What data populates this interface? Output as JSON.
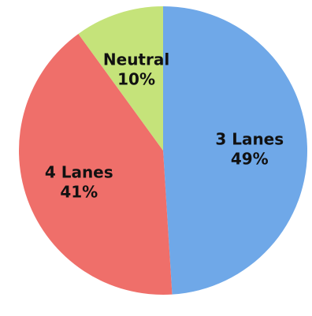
{
  "chart_data": {
    "type": "pie",
    "title": "",
    "start": "12 o'clock",
    "direction": "clockwise",
    "slices": [
      {
        "label": "3 Lanes",
        "value": 49,
        "value_label": "49%",
        "color": "#6fa8e8"
      },
      {
        "label": "4 Lanes",
        "value": 41,
        "value_label": "41%",
        "color": "#ef6f6a"
      },
      {
        "label": "Neutral",
        "value": 10,
        "value_label": "10%",
        "color": "#c5e37a"
      }
    ]
  }
}
